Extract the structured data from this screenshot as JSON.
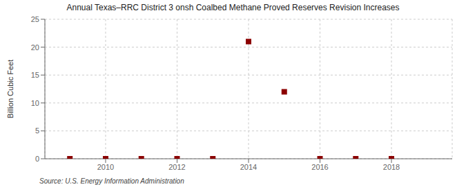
{
  "chart_data": {
    "type": "scatter",
    "title": "Annual Texas–RRC District 3 onsh Coalbed Methane Proved Reserves Revision Increases",
    "ylabel": "Billion Cubic Feet",
    "annotations": [
      "Source: U.S. Energy Information Administration"
    ],
    "x": [
      2009,
      2010,
      2011,
      2012,
      2013,
      2014,
      2015,
      2016,
      2017,
      2018
    ],
    "values": [
      0.0,
      0.0,
      0.0,
      0.0,
      0.0,
      21.0,
      12.0,
      0.0,
      0.0,
      0.0
    ],
    "color": "#8b0000",
    "marker": "square",
    "xlim": [
      2008.3,
      2019.7
    ],
    "ylim": [
      0,
      25
    ],
    "xticks": [
      2010,
      2012,
      2014,
      2016,
      2018
    ],
    "yticks": [
      0,
      5,
      10,
      15,
      20,
      25
    ],
    "grid": true
  }
}
